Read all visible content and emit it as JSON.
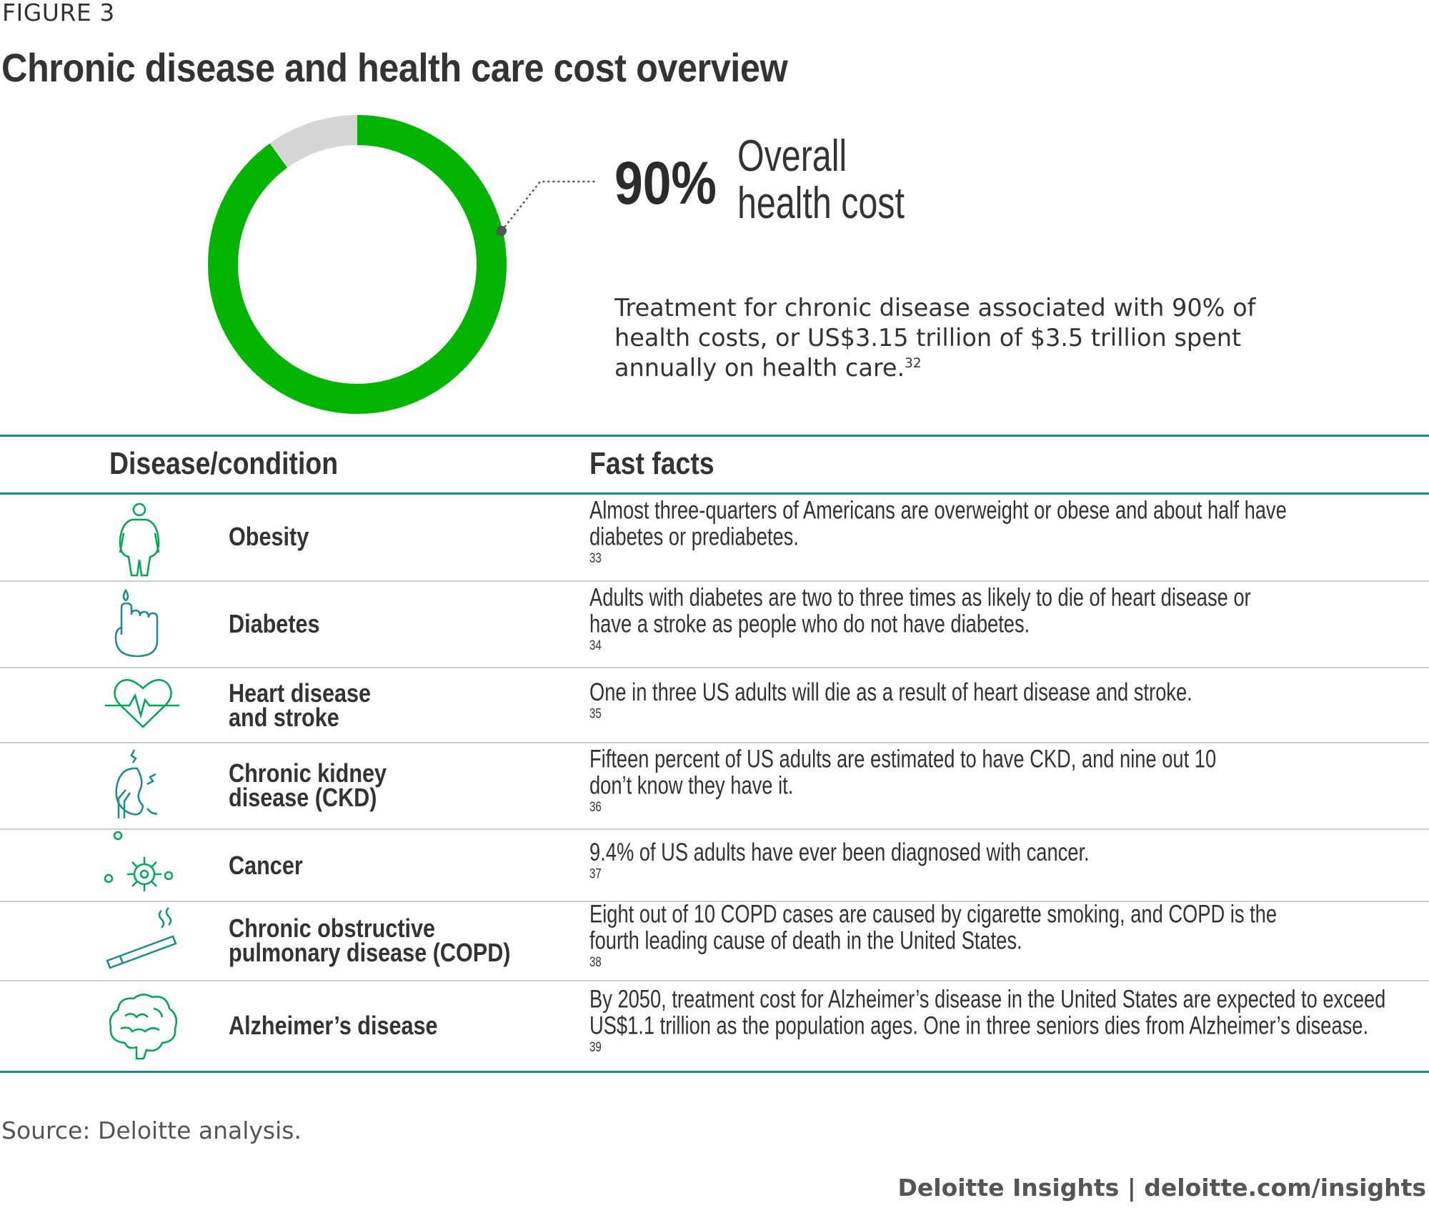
{
  "figure_label": "FIGURE 3",
  "title": "Chronic disease and health care cost overview",
  "donut": {
    "value_pct": 90,
    "pct_text": "90%",
    "label_line1": "Overall",
    "label_line2": "health cost",
    "filled_color": "#00b400",
    "remainder_color": "#d6d6d6"
  },
  "description": {
    "line1": "Treatment for chronic disease associated with 90% of",
    "line2": "health costs, or US$3.15 trillion of $3.5 trillion spent",
    "line3": "annually on health care.",
    "sup": "32"
  },
  "table": {
    "col1_header": "Disease/condition",
    "col2_header": "Fast facts",
    "rule_color": "#1b8a94",
    "rows": [
      {
        "icon": "obesity-icon",
        "cond1": "Obesity",
        "cond2": "",
        "fact1": "Almost three-quarters of Americans are overweight or obese and about half have",
        "fact2": "diabetes or prediabetes.",
        "sup": "33"
      },
      {
        "icon": "diabetes-icon",
        "cond1": "Diabetes",
        "cond2": "",
        "fact1": "Adults with diabetes are two to three times as likely to die of heart disease or",
        "fact2": "have a stroke as people who do not have diabetes.",
        "sup": "34"
      },
      {
        "icon": "heart-icon",
        "cond1": "Heart disease",
        "cond2": "and stroke",
        "fact1": "One in three US adults will die as a result of heart disease and stroke.",
        "fact2": "",
        "sup": "35"
      },
      {
        "icon": "kidney-icon",
        "cond1": "Chronic kidney",
        "cond2": "disease (CKD)",
        "fact1": "Fifteen percent of US adults are estimated to have CKD, and nine out 10",
        "fact2": "don’t know they have it.",
        "sup": "36"
      },
      {
        "icon": "cancer-cell-icon",
        "cond1": "Cancer",
        "cond2": "",
        "fact1": "9.4% of US adults have ever been diagnosed with cancer.",
        "fact2": "",
        "sup": "37"
      },
      {
        "icon": "cigarette-icon",
        "cond1": "Chronic obstructive",
        "cond2": "pulmonary disease (COPD)",
        "fact1": "Eight out of 10 COPD cases are caused by cigarette smoking, and COPD is the",
        "fact2": "fourth leading cause of death in the United States.",
        "sup": "38"
      },
      {
        "icon": "brain-icon",
        "cond1": "Alzheimer’s disease",
        "cond2": "",
        "fact1": "By 2050, treatment cost for Alzheimer’s disease in the United States are expected to exceed",
        "fact2": "US$1.1 trillion as the population ages. One in three seniors dies from Alzheimer’s disease.",
        "sup": "39"
      }
    ]
  },
  "source": "Source: Deloitte analysis.",
  "brand": "Deloitte Insights | deloitte.com/insights"
}
